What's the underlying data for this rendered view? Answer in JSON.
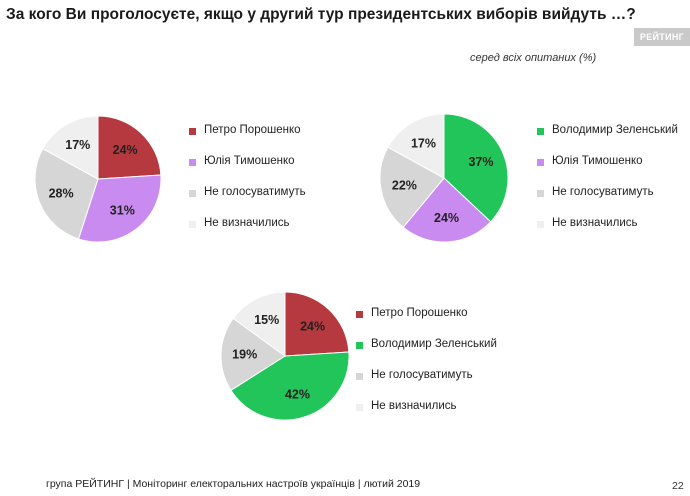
{
  "header": {
    "title": "За кого Ви проголосуєте, якщо у другий тур президентських виборів вийдуть …?",
    "subtitle": "серед всіх опитаних (%)",
    "logo_text": "РЕЙТИНГ"
  },
  "colors": {
    "poroshenko": "#b5393f",
    "tymoshenko": "#c98bf0",
    "zelensky": "#22c55a",
    "wont_vote": "#d6d6d6",
    "undecided": "#efefef"
  },
  "chart_data": [
    {
      "type": "pie",
      "slices": [
        {
          "label": "Петро Порошенко",
          "value": 24,
          "value_label": "24%",
          "color_key": "poroshenko"
        },
        {
          "label": "Юлія Тимошенко",
          "value": 31,
          "value_label": "31%",
          "color_key": "tymoshenko"
        },
        {
          "label": "Не голосуватимуть",
          "value": 28,
          "value_label": "28%",
          "color_key": "wont_vote"
        },
        {
          "label": "Не визначились",
          "value": 17,
          "value_label": "17%",
          "color_key": "undecided"
        }
      ],
      "legend_position": "right"
    },
    {
      "type": "pie",
      "slices": [
        {
          "label": "Володимир Зеленський",
          "value": 37,
          "value_label": "37%",
          "color_key": "zelensky"
        },
        {
          "label": "Юлія Тимошенко",
          "value": 24,
          "value_label": "24%",
          "color_key": "tymoshenko"
        },
        {
          "label": "Не голосуватимуть",
          "value": 22,
          "value_label": "22%",
          "color_key": "wont_vote"
        },
        {
          "label": "Не визначились",
          "value": 17,
          "value_label": "17%",
          "color_key": "undecided"
        }
      ],
      "legend_position": "right"
    },
    {
      "type": "pie",
      "slices": [
        {
          "label": "Петро Порошенко",
          "value": 24,
          "value_label": "24%",
          "color_key": "poroshenko"
        },
        {
          "label": "Володимир Зеленський",
          "value": 42,
          "value_label": "42%",
          "color_key": "zelensky"
        },
        {
          "label": "Не голосуватимуть",
          "value": 19,
          "value_label": "19%",
          "color_key": "wont_vote"
        },
        {
          "label": "Не визначились",
          "value": 15,
          "value_label": "15%",
          "color_key": "undecided"
        }
      ],
      "legend_position": "right"
    }
  ],
  "footer": {
    "text": "група РЕЙТИНГ |  Моніторинг електоральних настроїв українців | лютий  2019",
    "page_number": "22"
  }
}
